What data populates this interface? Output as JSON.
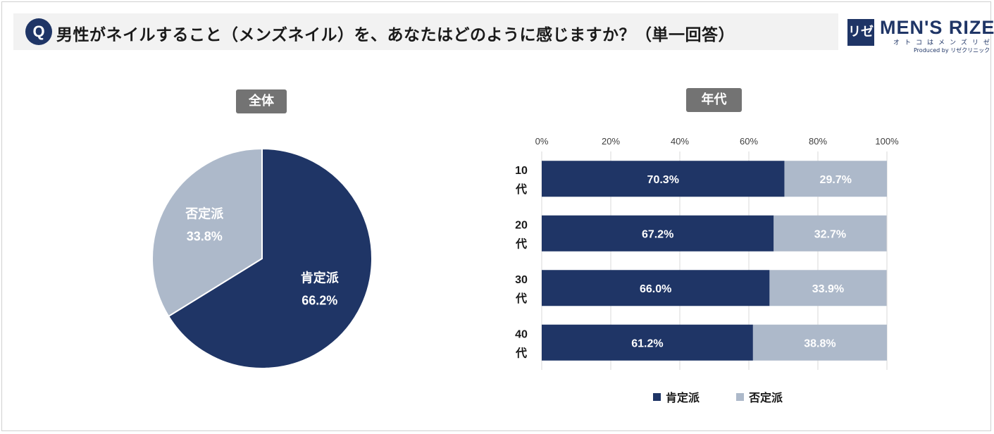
{
  "question": {
    "badge": "Q",
    "text": "男性がネイルすること（メンズネイル）を、あなたはどのように感じますか？（単一回答）"
  },
  "logo": {
    "mark": "リゼ",
    "name": "MEN'S RIZE",
    "tagline": "オトコはメンズリゼ",
    "produced_by": "Produced by リゼクリニック"
  },
  "colors": {
    "positive": "#1f3566",
    "negative": "#adb9ca",
    "tag_bg": "#737373"
  },
  "chart_data": [
    {
      "type": "pie",
      "title": "全体",
      "slices": [
        {
          "label": "肯定派",
          "value": 66.2,
          "display": "66.2%"
        },
        {
          "label": "否定派",
          "value": 33.8,
          "display": "33.8%"
        }
      ]
    },
    {
      "type": "bar",
      "orientation": "horizontal",
      "stacked": true,
      "title": "年代",
      "categories": [
        [
          "10",
          "代"
        ],
        [
          "20",
          "代"
        ],
        [
          "30",
          "代"
        ],
        [
          "40",
          "代"
        ]
      ],
      "xlim": [
        0,
        100
      ],
      "xticks": [
        "0%",
        "20%",
        "40%",
        "60%",
        "80%",
        "100%"
      ],
      "grid": true,
      "legend_position": "bottom",
      "series": [
        {
          "name": "肯定派",
          "values": [
            70.3,
            67.2,
            66.0,
            61.2
          ],
          "labels": [
            "70.3%",
            "67.2%",
            "66.0%",
            "61.2%"
          ]
        },
        {
          "name": "否定派",
          "values": [
            29.7,
            32.7,
            33.9,
            38.8
          ],
          "labels": [
            "29.7%",
            "32.7%",
            "33.9%",
            "38.8%"
          ]
        }
      ]
    }
  ]
}
